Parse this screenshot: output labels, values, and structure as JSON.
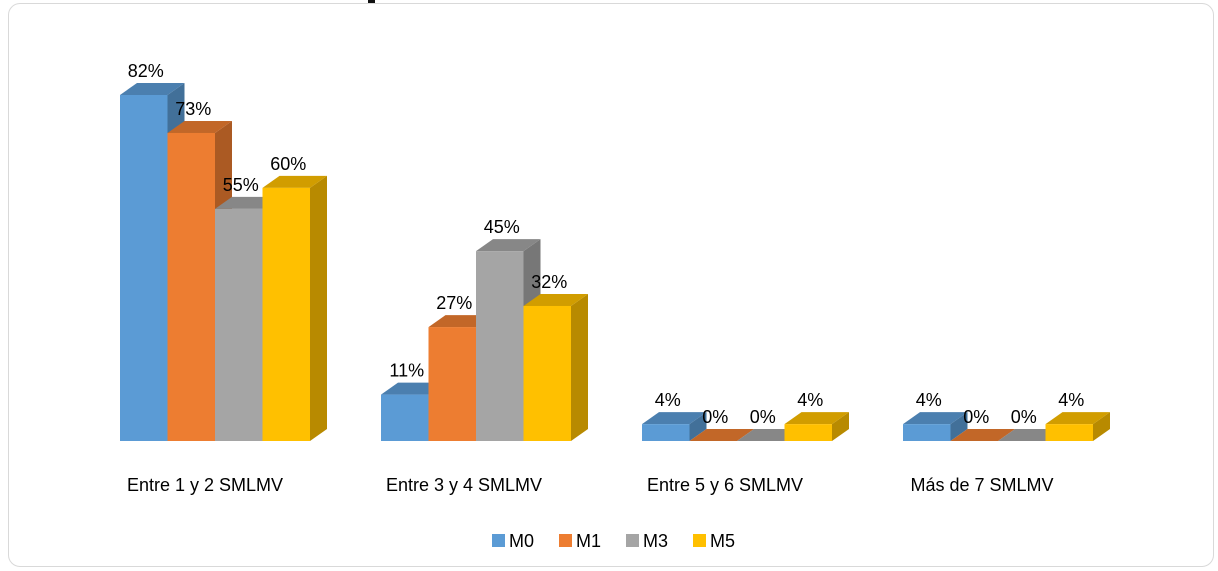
{
  "chart_data": {
    "type": "bar",
    "style": "3d-clustered-column",
    "title": "",
    "xlabel": "",
    "ylabel": "",
    "ylim": [
      0,
      100
    ],
    "grid": false,
    "legend_position": "bottom",
    "value_suffix": "%",
    "categories": [
      "Entre 1 y 2 SMLMV",
      "Entre 3 y 4 SMLMV",
      "Entre 5 y 6 SMLMV",
      "Más de 7 SMLMV"
    ],
    "series": [
      {
        "name": "M0",
        "color": "#5b9bd5",
        "values": [
          82,
          11,
          4,
          4
        ]
      },
      {
        "name": "M1",
        "color": "#ed7d31",
        "values": [
          73,
          27,
          0,
          0
        ]
      },
      {
        "name": "M3",
        "color": "#a5a5a5",
        "values": [
          55,
          45,
          0,
          0
        ]
      },
      {
        "name": "M5",
        "color": "#ffc000",
        "values": [
          60,
          32,
          4,
          4
        ]
      }
    ]
  }
}
